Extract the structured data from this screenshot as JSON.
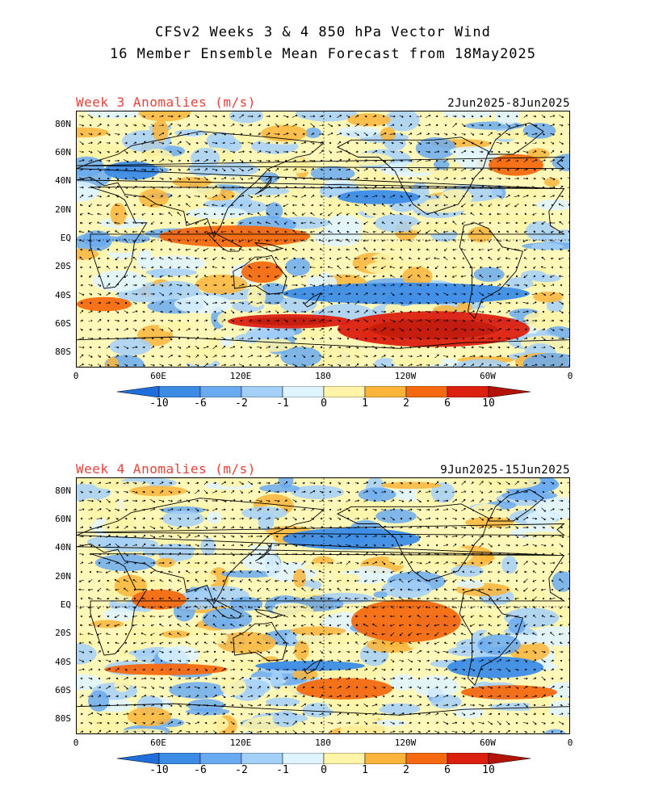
{
  "figure": {
    "title_line1": "CFSv2 Weeks 3 & 4 850 hPa Vector Wind",
    "title_line2": "16 Member Ensemble Mean Forecast from 18May2025"
  },
  "panels": [
    {
      "label": "Week 3 Anomalies (m/s)",
      "date_range": "2Jun2025-8Jun2025"
    },
    {
      "label": "Week 4 Anomalies (m/s)",
      "date_range": "9Jun2025-15Jun2025"
    }
  ],
  "lat_ticks": [
    "80N",
    "60N",
    "40N",
    "20N",
    "EQ",
    "20S",
    "40S",
    "60S",
    "80S"
  ],
  "lat_values": [
    80,
    60,
    40,
    20,
    0,
    -20,
    -40,
    -60,
    -80
  ],
  "lon_ticks": [
    "0",
    "60E",
    "120E",
    "180",
    "120W",
    "60W",
    "0"
  ],
  "lon_values": [
    0,
    60,
    120,
    180,
    240,
    300,
    360
  ],
  "colorbar": {
    "labels": [
      "-10",
      "-6",
      "-2",
      "-1",
      "0",
      "1",
      "2",
      "6",
      "10"
    ],
    "colors": [
      "#1e6fdc",
      "#3c8ce6",
      "#6aaaf0",
      "#a4d0f8",
      "#dff4ff",
      "#fff4a8",
      "#fcb53a",
      "#f56a10",
      "#dc2010",
      "#b41408"
    ]
  },
  "chart_data": [
    {
      "type": "heatmap",
      "title": "Week 3 Anomalies (m/s)",
      "subtitle": "2Jun2025-8Jun2025",
      "variable": "850 hPa vector wind anomaly",
      "units": "m/s",
      "x_range": [
        0,
        360
      ],
      "y_range": [
        -90,
        90
      ],
      "anomaly_regions": [
        {
          "lon": [
            190,
            330
          ],
          "lat": [
            -75,
            -50
          ],
          "level": "6 to 10"
        },
        {
          "lon": [
            110,
            200
          ],
          "lat": [
            -62,
            -52
          ],
          "level": "6 to 10"
        },
        {
          "lon": [
            0,
            40
          ],
          "lat": [
            -50,
            -40
          ],
          "level": "2 to 6"
        },
        {
          "lon": [
            60,
            170
          ],
          "lat": [
            -5,
            10
          ],
          "level": "2 to 6"
        },
        {
          "lon": [
            120,
            150
          ],
          "lat": [
            -30,
            -15
          ],
          "level": "2 to 6"
        },
        {
          "lon": [
            150,
            330
          ],
          "lat": [
            -45,
            -30
          ],
          "level": "-6 to -2"
        },
        {
          "lon": [
            190,
            250
          ],
          "lat": [
            25,
            35
          ],
          "level": "-6 to -2"
        },
        {
          "lon": [
            20,
            60
          ],
          "lat": [
            42,
            55
          ],
          "level": "-6 to -2"
        },
        {
          "lon": [
            300,
            340
          ],
          "lat": [
            45,
            60
          ],
          "level": "2 to 6"
        }
      ]
    },
    {
      "type": "heatmap",
      "title": "Week 4 Anomalies (m/s)",
      "subtitle": "9Jun2025-15Jun2025",
      "variable": "850 hPa vector wind anomaly",
      "units": "m/s",
      "x_range": [
        0,
        360
      ],
      "y_range": [
        -90,
        90
      ],
      "anomaly_regions": [
        {
          "lon": [
            160,
            230
          ],
          "lat": [
            -65,
            -50
          ],
          "level": "2 to 6"
        },
        {
          "lon": [
            280,
            350
          ],
          "lat": [
            -65,
            -55
          ],
          "level": "2 to 6"
        },
        {
          "lon": [
            20,
            110
          ],
          "lat": [
            -48,
            -40
          ],
          "level": "2 to 6"
        },
        {
          "lon": [
            40,
            80
          ],
          "lat": [
            -2,
            12
          ],
          "level": "2 to 6"
        },
        {
          "lon": [
            200,
            280
          ],
          "lat": [
            -25,
            5
          ],
          "level": "2 to 6"
        },
        {
          "lon": [
            130,
            210
          ],
          "lat": [
            -45,
            -38
          ],
          "level": "-6 to -2"
        },
        {
          "lon": [
            270,
            340
          ],
          "lat": [
            -50,
            -35
          ],
          "level": "-6 to -2"
        },
        {
          "lon": [
            150,
            250
          ],
          "lat": [
            40,
            55
          ],
          "level": "-6 to -2"
        }
      ]
    }
  ]
}
